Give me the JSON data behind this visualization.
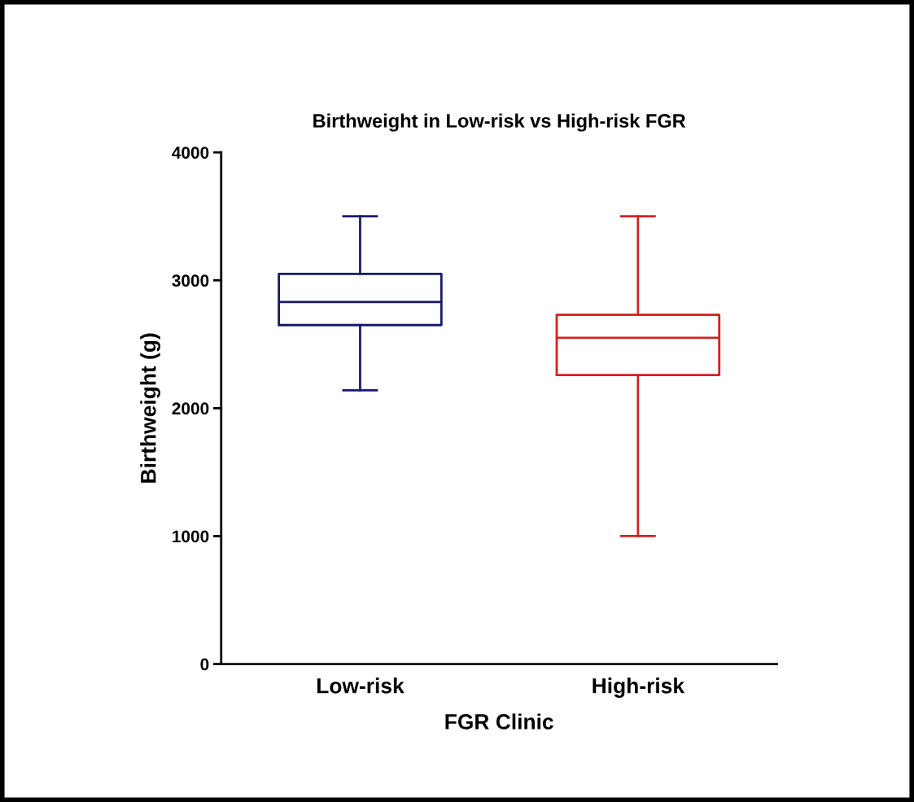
{
  "chart_data": {
    "type": "box",
    "title": "Birthweight in Low-risk vs High-risk FGR",
    "xlabel": "FGR Clinic",
    "ylabel": "Birthweight (g)",
    "categories": [
      "Low-risk",
      "High-risk"
    ],
    "series": [
      {
        "color": "#1a1a6e",
        "boxes": [
          {
            "low": 2140,
            "q1": 2650,
            "median": 2830,
            "q3": 3050,
            "high": 3500
          },
          null
        ]
      },
      {
        "color": "#d42020",
        "boxes": [
          null,
          {
            "low": 1000,
            "q1": 2260,
            "median": 2550,
            "q3": 2730,
            "high": 3500
          }
        ]
      }
    ],
    "ylim": [
      0,
      4000
    ],
    "yticks": [
      0,
      1000,
      2000,
      3000,
      4000
    ],
    "grid": false,
    "legend": false
  }
}
